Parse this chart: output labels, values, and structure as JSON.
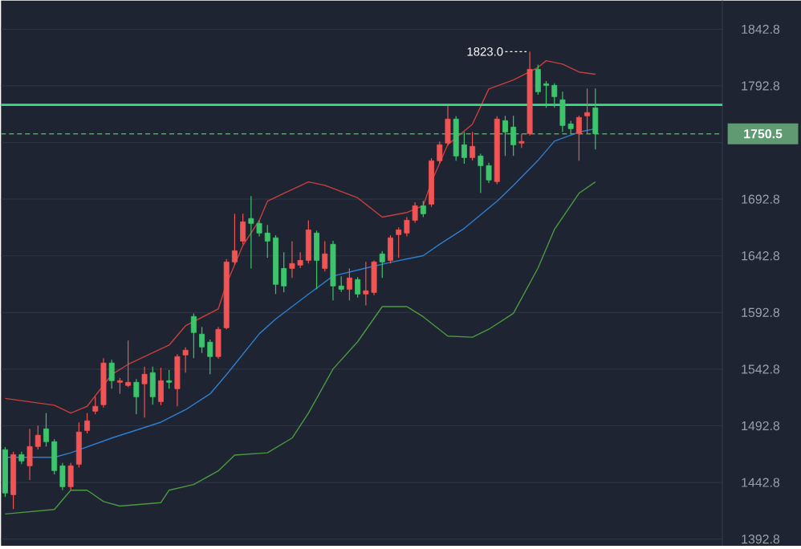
{
  "chart_data": {
    "type": "candlestick",
    "categories": [
      null,
      null,
      null,
      null,
      null,
      null,
      null,
      null,
      null,
      null,
      null,
      null,
      null,
      null,
      null,
      null,
      null,
      null,
      null,
      null,
      null,
      null,
      null,
      null,
      null,
      null,
      null,
      null,
      null,
      null,
      null,
      null,
      null,
      null,
      null,
      null,
      null,
      null,
      null,
      null,
      null,
      null,
      null,
      null,
      null,
      null,
      null,
      null,
      null,
      null,
      null,
      null,
      null,
      null,
      null,
      null,
      null,
      null,
      null,
      null,
      null,
      null,
      null,
      null,
      null,
      null,
      null,
      null,
      null,
      null,
      null,
      null,
      null,
      null,
      null,
      null,
      null,
      null,
      null,
      null,
      null,
      null,
      null,
      null,
      null,
      null,
      null,
      null
    ],
    "ohlc": [
      [
        1471.7,
        1474,
        1430,
        1433.5
      ],
      [
        1432.0,
        1470,
        1419.3,
        1467.4
      ],
      [
        1467.4,
        1470,
        1459,
        1461.8
      ],
      [
        1457.5,
        1490.1,
        1445,
        1474.5
      ],
      [
        1474.5,
        1493,
        1472,
        1484.5
      ],
      [
        1490.1,
        1504,
        1474.5,
        1478.8
      ],
      [
        1478.8,
        1481,
        1450,
        1453.3
      ],
      [
        1457.5,
        1460,
        1436,
        1439.1
      ],
      [
        1439.1,
        1460,
        1436,
        1457.5
      ],
      [
        1458.9,
        1495.8,
        1456,
        1487.3
      ],
      [
        1488.7,
        1504,
        1486,
        1497.2
      ],
      [
        1505.7,
        1518.4,
        1503,
        1510.0
      ],
      [
        1511.4,
        1552.4,
        1509,
        1548.2
      ],
      [
        1548.2,
        1551,
        1525.5,
        1532.6
      ],
      [
        1531.2,
        1535,
        1521,
        1532.6
      ],
      [
        1528.4,
        1568.0,
        1527,
        1531.2
      ],
      [
        1531.2,
        1534,
        1503,
        1518.4
      ],
      [
        1529.8,
        1545,
        1500,
        1538.3
      ],
      [
        1539.7,
        1545,
        1511.4,
        1518.4
      ],
      [
        1514.2,
        1544,
        1511,
        1532.6
      ],
      [
        1532.6,
        1542,
        1525.5,
        1531.2
      ],
      [
        1525.5,
        1556,
        1510.0,
        1553.9
      ],
      [
        1555.3,
        1562,
        1539.7,
        1559.5
      ],
      [
        1589.3,
        1592,
        1552.4,
        1575.1
      ],
      [
        1573.7,
        1580,
        1557,
        1562.4
      ],
      [
        1566.6,
        1569,
        1538.3,
        1553.9
      ],
      [
        1553.9,
        1580,
        1552,
        1577.9
      ],
      [
        1579.3,
        1640,
        1577.9,
        1637.4
      ],
      [
        1637.4,
        1679.9,
        1635,
        1647.3
      ],
      [
        1655.8,
        1679.9,
        1653,
        1672.8
      ],
      [
        1675.7,
        1695.5,
        1631.7,
        1671.4
      ],
      [
        1671.4,
        1674,
        1660,
        1662.9
      ],
      [
        1662.9,
        1670,
        1641,
        1655.8
      ],
      [
        1658.7,
        1661,
        1609.1,
        1617.6
      ],
      [
        1631.7,
        1645.9,
        1610.5,
        1616.2
      ],
      [
        1631.7,
        1655.8,
        1623.3,
        1636.0
      ],
      [
        1634.6,
        1645.9,
        1632,
        1638.8
      ],
      [
        1638.8,
        1674.2,
        1636,
        1665.7
      ],
      [
        1662.9,
        1665,
        1613.3,
        1638.8
      ],
      [
        1631.7,
        1655.8,
        1629,
        1644.5
      ],
      [
        1653.0,
        1656,
        1603.4,
        1616.2
      ],
      [
        1616.2,
        1624.7,
        1611,
        1613.3
      ],
      [
        1613.3,
        1631.7,
        1603.4,
        1623.3
      ],
      [
        1621.9,
        1624,
        1606,
        1609.1
      ],
      [
        1609.1,
        1637.4,
        1599,
        1612.0
      ],
      [
        1610.5,
        1638.8,
        1608,
        1637.4
      ],
      [
        1644.5,
        1647,
        1623.3,
        1637.4
      ],
      [
        1638.8,
        1661,
        1636,
        1658.7
      ],
      [
        1661.5,
        1668,
        1641,
        1665.7
      ],
      [
        1662.9,
        1677,
        1660,
        1674.2
      ],
      [
        1674.2,
        1690,
        1672,
        1687.0
      ],
      [
        1687.0,
        1691.3,
        1677,
        1679.9
      ],
      [
        1688.4,
        1729,
        1686,
        1726.7
      ],
      [
        1726.7,
        1743.7,
        1724,
        1740.8
      ],
      [
        1742.3,
        1774.8,
        1740,
        1763.5
      ],
      [
        1763.5,
        1766,
        1726.7,
        1730.9
      ],
      [
        1740.8,
        1752.1,
        1724,
        1729.5
      ],
      [
        1729.5,
        1752.1,
        1727,
        1739.4
      ],
      [
        1730.9,
        1733,
        1698.3,
        1722.4
      ],
      [
        1722.4,
        1725,
        1707,
        1709.7
      ],
      [
        1708.3,
        1766,
        1706,
        1763.5
      ],
      [
        1762.1,
        1766.3,
        1730.9,
        1752.1
      ],
      [
        1756.4,
        1766.3,
        1730.9,
        1740.8
      ],
      [
        1742.3,
        1750.7,
        1738,
        1743.7
      ],
      [
        1750.7,
        1823.0,
        1749,
        1807.4
      ],
      [
        1807.4,
        1811.6,
        1785,
        1787.6
      ],
      [
        1794.6,
        1797,
        1773.4,
        1793.2
      ],
      [
        1793.2,
        1795,
        1773.4,
        1783.3
      ],
      [
        1780.5,
        1787.6,
        1752.1,
        1757.8
      ],
      [
        1759.2,
        1762,
        1750.7,
        1755.0
      ],
      [
        1750.7,
        1766.3,
        1726.7,
        1764.9
      ],
      [
        1766.3,
        1790.4,
        1750.7,
        1769.2
      ],
      [
        1773.4,
        1790.4,
        1736.6,
        1750.5
      ],
      null,
      null,
      null,
      null,
      null,
      null,
      null,
      null,
      null,
      null,
      null,
      null,
      null,
      null,
      null
    ],
    "colors": [
      "#3ec46d",
      "#f05454",
      "#3ec46d",
      "#f05454",
      "#f05454",
      "#3ec46d",
      "#3ec46d",
      "#3ec46d",
      "#f05454",
      "#f05454",
      "#f05454",
      "#f05454",
      "#f05454",
      "#3ec46d",
      "#f05454",
      "#f05454",
      "#3ec46d",
      "#f05454",
      "#3ec46d",
      "#f05454",
      "#3ec46d",
      "#f05454",
      "#f05454",
      "#3ec46d",
      "#3ec46d",
      "#3ec46d",
      "#f05454",
      "#f05454",
      "#f05454",
      "#f05454",
      "#3ec46d",
      "#3ec46d",
      "#3ec46d",
      "#3ec46d",
      "#3ec46d",
      "#f05454",
      "#f05454",
      "#f05454",
      "#3ec46d",
      "#f05454",
      "#3ec46d",
      "#3ec46d",
      "#f05454",
      "#3ec46d",
      "#f05454",
      "#f05454",
      "#3ec46d",
      "#f05454",
      "#f05454",
      "#f05454",
      "#f05454",
      "#3ec46d",
      "#f05454",
      "#f05454",
      "#f05454",
      "#3ec46d",
      "#3ec46d",
      "#f05454",
      "#3ec46d",
      "#3ec46d",
      "#f05454",
      "#3ec46d",
      "#3ec46d",
      "#f05454",
      "#f05454",
      "#3ec46d",
      "#3ec46d",
      "#3ec46d",
      "#3ec46d",
      "#3ec46d",
      "#f05454",
      "#f05454",
      "#3ec46d",
      null,
      null,
      null,
      null,
      null,
      null,
      null,
      null,
      null,
      null,
      null,
      null,
      null,
      null,
      null
    ],
    "series": [
      {
        "type": "line",
        "color": "#c8403e",
        "values": [
          1517,
          null,
          null,
          null,
          null,
          null,
          1511,
          null,
          1504,
          null,
          1510,
          null,
          null,
          1538,
          null,
          1547,
          null,
          null,
          null,
          null,
          1564,
          null,
          1581,
          null,
          null,
          null,
          1596,
          1618,
          null,
          1652,
          null,
          1674,
          1691,
          null,
          1698,
          null,
          null,
          1708,
          null,
          1705,
          null,
          null,
          null,
          1694,
          null,
          null,
          1677,
          null,
          null,
          1681,
          null,
          1687,
          1708,
          null,
          1741,
          null,
          null,
          1759,
          null,
          1790,
          null,
          null,
          1798,
          null,
          null,
          1809,
          1815,
          null,
          1812,
          null,
          1805,
          null,
          1803,
          null,
          null,
          null,
          null,
          null,
          null,
          null,
          null,
          null,
          null,
          null,
          null,
          null,
          null,
          null
        ]
      },
      {
        "type": "line",
        "color": "#2f7fd0",
        "values": [
          1465,
          null,
          null,
          null,
          null,
          null,
          1465,
          null,
          1469,
          null,
          null,
          null,
          null,
          1482,
          null,
          null,
          null,
          null,
          null,
          1496,
          null,
          null,
          1507,
          null,
          null,
          1521,
          null,
          1538,
          null,
          null,
          null,
          1574,
          null,
          1587,
          null,
          null,
          null,
          1609,
          null,
          null,
          1625,
          null,
          null,
          null,
          1632,
          null,
          null,
          1637,
          null,
          null,
          null,
          1643,
          null,
          1653,
          null,
          null,
          1667,
          null,
          null,
          null,
          1691,
          null,
          1705,
          null,
          null,
          1727,
          null,
          1744,
          null,
          null,
          1752,
          null,
          1755,
          null,
          null,
          null,
          null,
          null,
          null,
          null,
          null,
          null,
          null,
          null,
          null,
          null,
          null,
          null
        ]
      },
      {
        "type": "line",
        "color": "#4a9a40",
        "values": [
          1415,
          null,
          null,
          null,
          null,
          null,
          1419,
          null,
          1436,
          null,
          1436,
          null,
          1426,
          null,
          1422,
          null,
          null,
          null,
          null,
          1425,
          1436,
          null,
          null,
          1441,
          null,
          null,
          1453,
          null,
          1467,
          null,
          null,
          null,
          1469,
          null,
          null,
          1482,
          null,
          1504,
          null,
          null,
          1543,
          null,
          null,
          1567,
          null,
          null,
          1598,
          null,
          null,
          1598,
          null,
          1589,
          null,
          null,
          1572,
          null,
          null,
          1571,
          null,
          1578,
          null,
          null,
          1592,
          null,
          null,
          1632,
          null,
          1666,
          null,
          null,
          1698,
          null,
          1708,
          null,
          null,
          null,
          null,
          null,
          null,
          null,
          null,
          null,
          null,
          null,
          null,
          null,
          null,
          null
        ]
      }
    ],
    "ylim": [
      1387,
      1868
    ],
    "yticks": [
      1392.8,
      1442.8,
      1492.8,
      1542.8,
      1592.8,
      1642.8,
      1692.8,
      {
        "value": 1742.8,
        "label": null
      },
      1792.8,
      1842.8
    ],
    "grid": "y",
    "ref_lines": [
      {
        "axis": "y",
        "value": 1776,
        "color": "#3ddc84",
        "line_style": "solid"
      },
      {
        "axis": "y",
        "value": 1750.5,
        "label": "1750.5",
        "color": "#5f9a72",
        "line_style": "dashed"
      }
    ],
    "annotations": [
      "1823.0"
    ]
  }
}
